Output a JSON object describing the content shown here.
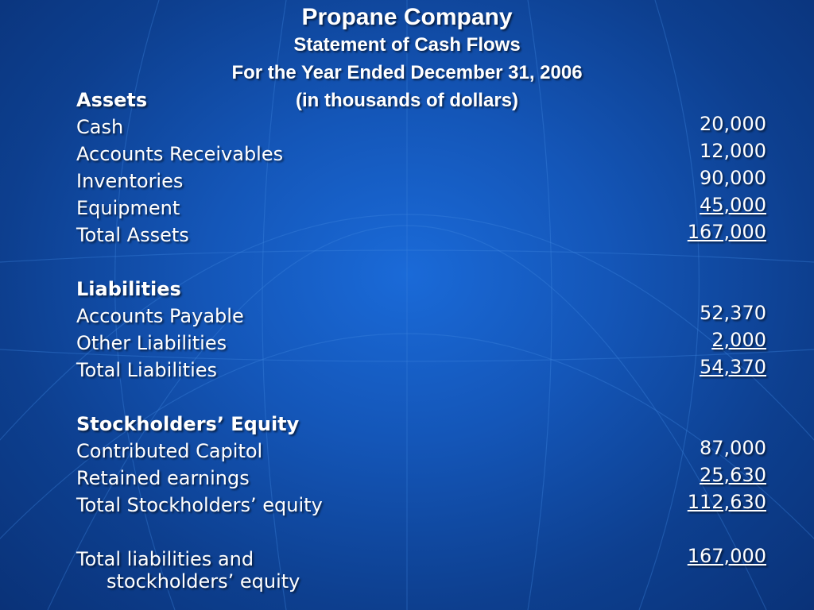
{
  "header": {
    "company": "Propane Company",
    "statement": "Statement of Cash Flows",
    "period": "For the Year Ended December 31, 2006",
    "units": "(in thousands of dollars)"
  },
  "assets": {
    "heading": "Assets",
    "rows": [
      {
        "label": "Cash",
        "amount": "20,000"
      },
      {
        "label": "Accounts Receivables",
        "amount": "12,000"
      },
      {
        "label": "Inventories",
        "amount": "90,000"
      },
      {
        "label": "Equipment",
        "amount": "45,000"
      },
      {
        "label": "Total Assets",
        "amount": "167,000"
      }
    ]
  },
  "liabilities": {
    "heading": "Liabilities",
    "rows": [
      {
        "label": "Accounts Payable",
        "amount": "52,370"
      },
      {
        "label": "Other Liabilities",
        "amount": "2,000"
      },
      {
        "label": "Total Liabilities",
        "amount": "54,370"
      }
    ]
  },
  "equity": {
    "heading": "Stockholders’ Equity",
    "rows": [
      {
        "label": "Contributed Capitol",
        "amount": "87,000"
      },
      {
        "label": "Retained earnings",
        "amount": "25,630"
      },
      {
        "label": "Total Stockholders’ equity",
        "amount": "112,630"
      }
    ]
  },
  "grand_total": {
    "label_line1": "Total liabilities and",
    "label_line2": "stockholders’ equity",
    "amount": "167,000"
  },
  "colors": {
    "background_center": "#1a6ad8",
    "background_edge": "#0a3278",
    "text": "#ffffff"
  }
}
